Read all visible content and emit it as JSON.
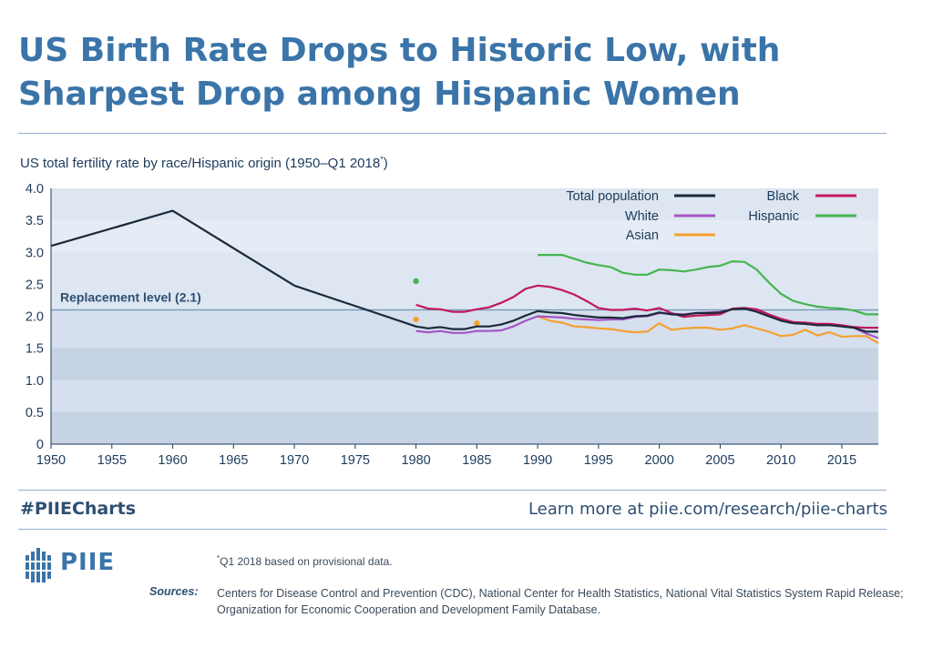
{
  "header": {
    "title_line1": "US Birth Rate Drops to Historic Low, with",
    "title_line2": "Sharpest Drop among Hispanic Women"
  },
  "footer": {
    "tag": "#PIIECharts",
    "link": "Learn more at piie.com/research/piie-charts",
    "logo_text": "PIIE",
    "note_marker": "*",
    "note_text": "Q1 2018 based on provisional data.",
    "sources_label": "Sources:",
    "sources_text": "Centers for Disease Control and Prevention (CDC), National Center for Health Statistics, National Vital Statistics System Rapid Release; Organization for Economic Cooperation and Development Family Database."
  },
  "colors": {
    "title": "#3a74a8",
    "plot_light": "#e6ecf5",
    "plot_mid": "#d5dfed",
    "plot_dark": "#c6d3e4"
  },
  "chart_data": {
    "type": "line",
    "subtitle": "US total fertility rate by race/Hispanic origin (1950–Q1 2018",
    "subtitle_marker": "*",
    "subtitle_close": ")",
    "xlim": [
      1950,
      2018
    ],
    "ylim": [
      0,
      4.0
    ],
    "xticks": [
      1950,
      1955,
      1960,
      1965,
      1970,
      1975,
      1980,
      1985,
      1990,
      1995,
      2000,
      2005,
      2010,
      2015
    ],
    "yticks": [
      "0",
      "0.5",
      "1.0",
      "1.5",
      "2.0",
      "2.5",
      "3.0",
      "3.5",
      "4.0"
    ],
    "grid": false,
    "legend_position": "top-right",
    "reference_line": {
      "label": "Replacement level (2.1)",
      "value": 2.1
    },
    "series": [
      {
        "name": "Total population",
        "color": "#1b2a3a",
        "points": [
          [
            1950,
            3.1
          ],
          [
            1960,
            3.65
          ],
          [
            1970,
            2.48
          ],
          [
            1980,
            1.84
          ],
          [
            1981,
            1.81
          ],
          [
            1982,
            1.83
          ],
          [
            1983,
            1.8
          ],
          [
            1984,
            1.8
          ],
          [
            1985,
            1.84
          ],
          [
            1986,
            1.84
          ],
          [
            1987,
            1.87
          ],
          [
            1988,
            1.93
          ],
          [
            1989,
            2.01
          ],
          [
            1990,
            2.08
          ],
          [
            1991,
            2.06
          ],
          [
            1992,
            2.05
          ],
          [
            1993,
            2.02
          ],
          [
            1994,
            2.0
          ],
          [
            1995,
            1.98
          ],
          [
            1996,
            1.98
          ],
          [
            1997,
            1.97
          ],
          [
            1998,
            2.0
          ],
          [
            1999,
            2.01
          ],
          [
            2000,
            2.06
          ],
          [
            2001,
            2.03
          ],
          [
            2002,
            2.02
          ],
          [
            2003,
            2.05
          ],
          [
            2004,
            2.05
          ],
          [
            2005,
            2.06
          ],
          [
            2006,
            2.11
          ],
          [
            2007,
            2.12
          ],
          [
            2008,
            2.07
          ],
          [
            2009,
            2.0
          ],
          [
            2010,
            1.93
          ],
          [
            2011,
            1.89
          ],
          [
            2012,
            1.88
          ],
          [
            2013,
            1.86
          ],
          [
            2014,
            1.86
          ],
          [
            2015,
            1.84
          ],
          [
            2016,
            1.82
          ],
          [
            2017,
            1.76
          ],
          [
            2018,
            1.76
          ]
        ]
      },
      {
        "name": "White",
        "color": "#a654c4",
        "points": [
          [
            1980,
            1.77
          ],
          [
            1981,
            1.75
          ],
          [
            1982,
            1.77
          ],
          [
            1983,
            1.74
          ],
          [
            1984,
            1.74
          ],
          [
            1985,
            1.77
          ],
          [
            1986,
            1.77
          ],
          [
            1987,
            1.78
          ],
          [
            1988,
            1.84
          ],
          [
            1989,
            1.93
          ],
          [
            1990,
            2.0
          ],
          [
            1991,
            1.99
          ],
          [
            1992,
            1.98
          ],
          [
            1993,
            1.96
          ],
          [
            1994,
            1.95
          ],
          [
            1995,
            1.94
          ],
          [
            1996,
            1.95
          ],
          [
            1997,
            1.95
          ],
          [
            1998,
            1.99
          ],
          [
            1999,
            2.0
          ],
          [
            2000,
            2.05
          ],
          [
            2001,
            2.04
          ],
          [
            2002,
            2.03
          ],
          [
            2003,
            2.05
          ],
          [
            2004,
            2.06
          ],
          [
            2005,
            2.07
          ],
          [
            2006,
            2.11
          ],
          [
            2007,
            2.12
          ],
          [
            2008,
            2.09
          ],
          [
            2009,
            2.02
          ],
          [
            2010,
            1.94
          ],
          [
            2011,
            1.9
          ],
          [
            2012,
            1.88
          ],
          [
            2013,
            1.86
          ],
          [
            2014,
            1.86
          ],
          [
            2015,
            1.85
          ],
          [
            2016,
            1.82
          ],
          [
            2017,
            1.73
          ],
          [
            2018,
            1.66
          ]
        ]
      },
      {
        "name": "Asian",
        "color": "#f5a030",
        "points": [
          [
            1980,
            1.95
          ],
          [
            1985,
            1.89
          ],
          [
            1990,
            2.0
          ],
          [
            1991,
            1.93
          ],
          [
            1992,
            1.9
          ],
          [
            1993,
            1.84
          ],
          [
            1994,
            1.83
          ],
          [
            1995,
            1.81
          ],
          [
            1996,
            1.8
          ],
          [
            1997,
            1.77
          ],
          [
            1998,
            1.75
          ],
          [
            1999,
            1.76
          ],
          [
            2000,
            1.89
          ],
          [
            2001,
            1.79
          ],
          [
            2002,
            1.81
          ],
          [
            2003,
            1.82
          ],
          [
            2004,
            1.82
          ],
          [
            2005,
            1.79
          ],
          [
            2006,
            1.81
          ],
          [
            2007,
            1.86
          ],
          [
            2008,
            1.81
          ],
          [
            2009,
            1.76
          ],
          [
            2010,
            1.69
          ],
          [
            2011,
            1.71
          ],
          [
            2012,
            1.79
          ],
          [
            2013,
            1.7
          ],
          [
            2014,
            1.75
          ],
          [
            2015,
            1.68
          ],
          [
            2016,
            1.69
          ],
          [
            2017,
            1.69
          ],
          [
            2018,
            1.58
          ]
        ]
      },
      {
        "name": "Black",
        "color": "#c3185e",
        "points": [
          [
            1980,
            2.18
          ],
          [
            1981,
            2.12
          ],
          [
            1982,
            2.11
          ],
          [
            1983,
            2.07
          ],
          [
            1984,
            2.07
          ],
          [
            1985,
            2.11
          ],
          [
            1986,
            2.14
          ],
          [
            1987,
            2.21
          ],
          [
            1988,
            2.3
          ],
          [
            1989,
            2.43
          ],
          [
            1990,
            2.48
          ],
          [
            1991,
            2.46
          ],
          [
            1992,
            2.41
          ],
          [
            1993,
            2.34
          ],
          [
            1994,
            2.24
          ],
          [
            1995,
            2.13
          ],
          [
            1996,
            2.1
          ],
          [
            1997,
            2.1
          ],
          [
            1998,
            2.12
          ],
          [
            1999,
            2.09
          ],
          [
            2000,
            2.13
          ],
          [
            2001,
            2.05
          ],
          [
            2002,
            1.99
          ],
          [
            2003,
            2.01
          ],
          [
            2004,
            2.02
          ],
          [
            2005,
            2.03
          ],
          [
            2006,
            2.12
          ],
          [
            2007,
            2.13
          ],
          [
            2008,
            2.11
          ],
          [
            2009,
            2.03
          ],
          [
            2010,
            1.96
          ],
          [
            2011,
            1.91
          ],
          [
            2012,
            1.9
          ],
          [
            2013,
            1.88
          ],
          [
            2014,
            1.88
          ],
          [
            2015,
            1.86
          ],
          [
            2016,
            1.83
          ],
          [
            2017,
            1.82
          ],
          [
            2018,
            1.82
          ]
        ]
      },
      {
        "name": "Hispanic",
        "color": "#46b450",
        "points": [
          [
            1980,
            2.55
          ],
          [
            1990,
            2.96
          ],
          [
            1991,
            2.96
          ],
          [
            1992,
            2.96
          ],
          [
            1993,
            2.9
          ],
          [
            1994,
            2.84
          ],
          [
            1995,
            2.8
          ],
          [
            1996,
            2.77
          ],
          [
            1997,
            2.68
          ],
          [
            1998,
            2.65
          ],
          [
            1999,
            2.65
          ],
          [
            2000,
            2.73
          ],
          [
            2001,
            2.72
          ],
          [
            2002,
            2.7
          ],
          [
            2003,
            2.73
          ],
          [
            2004,
            2.77
          ],
          [
            2005,
            2.79
          ],
          [
            2006,
            2.86
          ],
          [
            2007,
            2.85
          ],
          [
            2008,
            2.73
          ],
          [
            2009,
            2.53
          ],
          [
            2010,
            2.35
          ],
          [
            2011,
            2.24
          ],
          [
            2012,
            2.19
          ],
          [
            2013,
            2.15
          ],
          [
            2014,
            2.13
          ],
          [
            2015,
            2.12
          ],
          [
            2016,
            2.09
          ],
          [
            2017,
            2.03
          ],
          [
            2018,
            2.03
          ]
        ]
      }
    ]
  }
}
